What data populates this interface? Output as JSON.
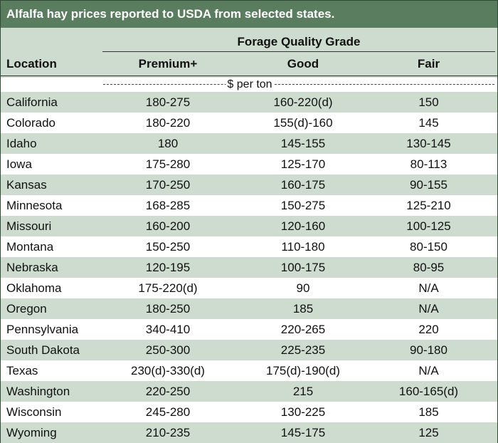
{
  "title": "Alfalfa hay prices reported to USDA from selected states.",
  "header": {
    "group": "Forage Quality Grade",
    "location": "Location",
    "premium": "Premium+",
    "good": "Good",
    "fair": "Fair"
  },
  "unit": "$ per ton",
  "rows": [
    {
      "location": "California",
      "premium": "180-275",
      "good": "160-220(d)",
      "fair": "150"
    },
    {
      "location": "Colorado",
      "premium": "180-220",
      "good": "155(d)-160",
      "fair": "145"
    },
    {
      "location": "Idaho",
      "premium": "180",
      "good": "145-155",
      "fair": "130-145"
    },
    {
      "location": "Iowa",
      "premium": "175-280",
      "good": "125-170",
      "fair": "80-113"
    },
    {
      "location": "Kansas",
      "premium": "170-250",
      "good": "160-175",
      "fair": "90-155"
    },
    {
      "location": "Minnesota",
      "premium": "168-285",
      "good": "150-275",
      "fair": "125-210"
    },
    {
      "location": "Missouri",
      "premium": "160-200",
      "good": "120-160",
      "fair": "100-125"
    },
    {
      "location": "Montana",
      "premium": "150-250",
      "good": "110-180",
      "fair": "80-150"
    },
    {
      "location": "Nebraska",
      "premium": "120-195",
      "good": "100-175",
      "fair": "80-95"
    },
    {
      "location": "Oklahoma",
      "premium": "175-220(d)",
      "good": "90",
      "fair": "N/A"
    },
    {
      "location": "Oregon",
      "premium": "180-250",
      "good": "185",
      "fair": "N/A"
    },
    {
      "location": "Pennsylvania",
      "premium": "340-410",
      "good": "220-265",
      "fair": "220"
    },
    {
      "location": "South Dakota",
      "premium": "250-300",
      "good": "225-235",
      "fair": "90-180"
    },
    {
      "location": "Texas",
      "premium": "230(d)-330(d)",
      "good": "175(d)-190(d)",
      "fair": "N/A"
    },
    {
      "location": "Washington",
      "premium": "220-250",
      "good": "215",
      "fair": "160-165(d)"
    },
    {
      "location": "Wisconsin",
      "premium": "245-280",
      "good": "130-225",
      "fair": "185"
    },
    {
      "location": "Wyoming",
      "premium": "210-235",
      "good": "145-175",
      "fair": "125"
    }
  ]
}
